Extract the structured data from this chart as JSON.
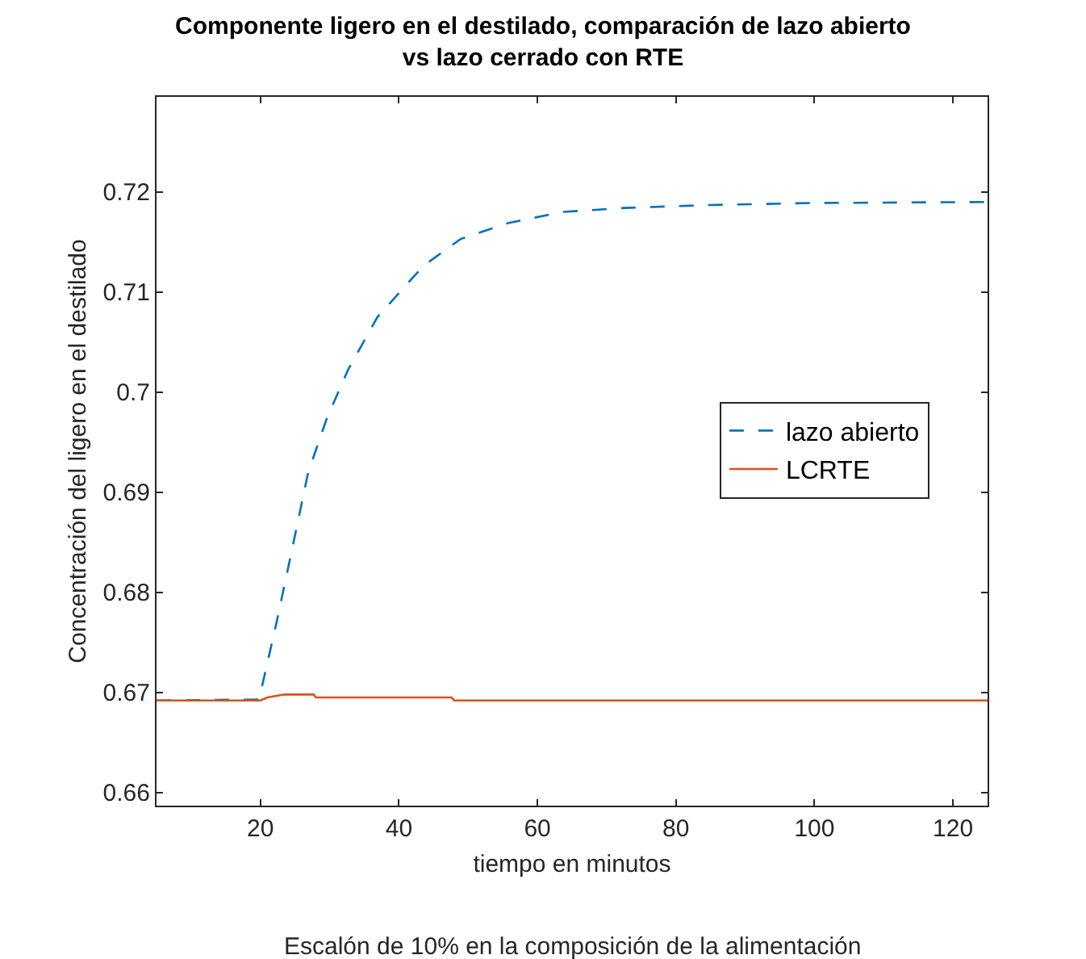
{
  "chart_data": {
    "type": "line",
    "title": "Componente ligero en el destilado, comparación de lazo abierto\nvs lazo cerrado con RTE",
    "xlabel": "tiempo en minutos",
    "ylabel": "Concentración del ligero en el destilado",
    "annotations": [
      "Escalón de 10% en la composición de la alimentación"
    ],
    "xlim": [
      5,
      125
    ],
    "xticks": [
      20,
      40,
      60,
      80,
      100,
      120
    ],
    "ylim": [
      0.6587,
      0.7295
    ],
    "yticks": [
      0.66,
      0.67,
      0.68,
      0.69,
      0.7,
      0.71,
      0.72
    ],
    "legend": "right",
    "series": [
      {
        "name": "lazo abierto",
        "color": "#0072bd",
        "line_style": "dashed",
        "x": [
          5,
          19.8,
          22.3,
          24.6,
          26.9,
          29.6,
          32.7,
          36.9,
          43.5,
          48.9,
          55.8,
          63.6,
          72.5,
          85,
          100,
          125
        ],
        "values": [
          0.6692,
          0.6693,
          0.6769,
          0.6844,
          0.692,
          0.6974,
          0.7023,
          0.7075,
          0.7126,
          0.7153,
          0.7169,
          0.718,
          0.7184,
          0.7187,
          0.7189,
          0.719
        ]
      },
      {
        "name": "LCRTE",
        "color": "#d95319",
        "line_style": "solid",
        "x": [
          5,
          20,
          21,
          23.5,
          27.7,
          28,
          47.6,
          48,
          125
        ],
        "values": [
          0.6692,
          0.6692,
          0.6695,
          0.6698,
          0.6698,
          0.6695,
          0.6695,
          0.6692,
          0.6692
        ]
      }
    ]
  }
}
